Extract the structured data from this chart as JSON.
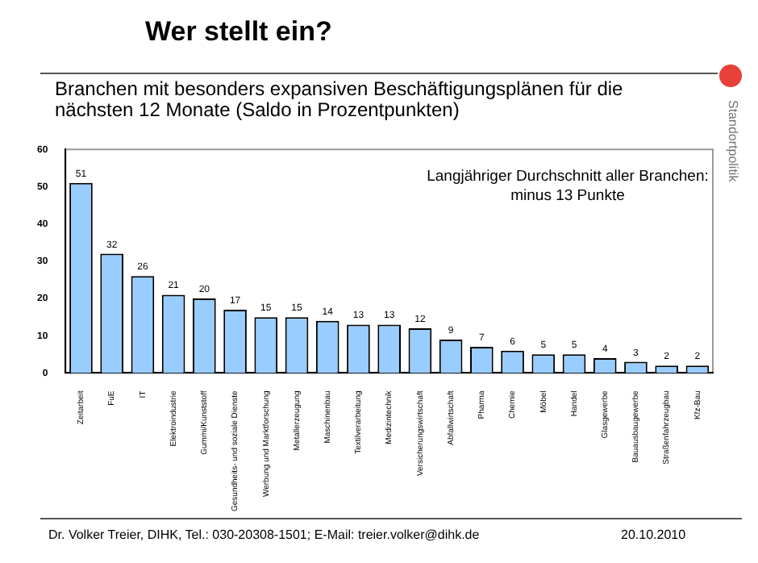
{
  "chart_data": {
    "type": "bar",
    "title": "Wer stellt ein?",
    "subtitle": "Branchen mit besonders expansiven Beschäftigungsplänen für die nächsten 12 Monate (Saldo in Prozentpunkten)",
    "categories": [
      "Zeitarbeit",
      "FuE",
      "IT",
      "Elektroindustrie",
      "Gummi/Kunststoff",
      "Gesundheits- und soziale Dienste",
      "Werbung und Marktforschung",
      "Metallerzeugung",
      "Maschinenbau",
      "Textilverarbeitung",
      "Medizintechnik",
      "Versicherungswirtschaft",
      "Abfallwirtschaft",
      "Pharma",
      "Chemie",
      "Möbel",
      "Handel",
      "Glasgewerbe",
      "Bauausbaugewerbe",
      "Straßenfahrzeugbau",
      "Kfz-Bau"
    ],
    "values": [
      51,
      32,
      26,
      21,
      20,
      17,
      15,
      15,
      14,
      13,
      13,
      12,
      9,
      7,
      6,
      5,
      5,
      4,
      3,
      2,
      2
    ],
    "color": "#99ccff",
    "data_labels": true,
    "grid": false,
    "legend": false,
    "ylim": [
      0,
      60
    ],
    "yticks": [
      0,
      10,
      20,
      30,
      40,
      50,
      60
    ],
    "annotations": [
      "Langjähriger Durchschnitt aller Branchen: minus 13 Punkte",
      "Standortpolitik",
      "Dr. Volker Treier, DIHK, Tel.: 030-20308-1501; E-Mail: treier.volker@dihk.de",
      "20.10.2010"
    ]
  }
}
